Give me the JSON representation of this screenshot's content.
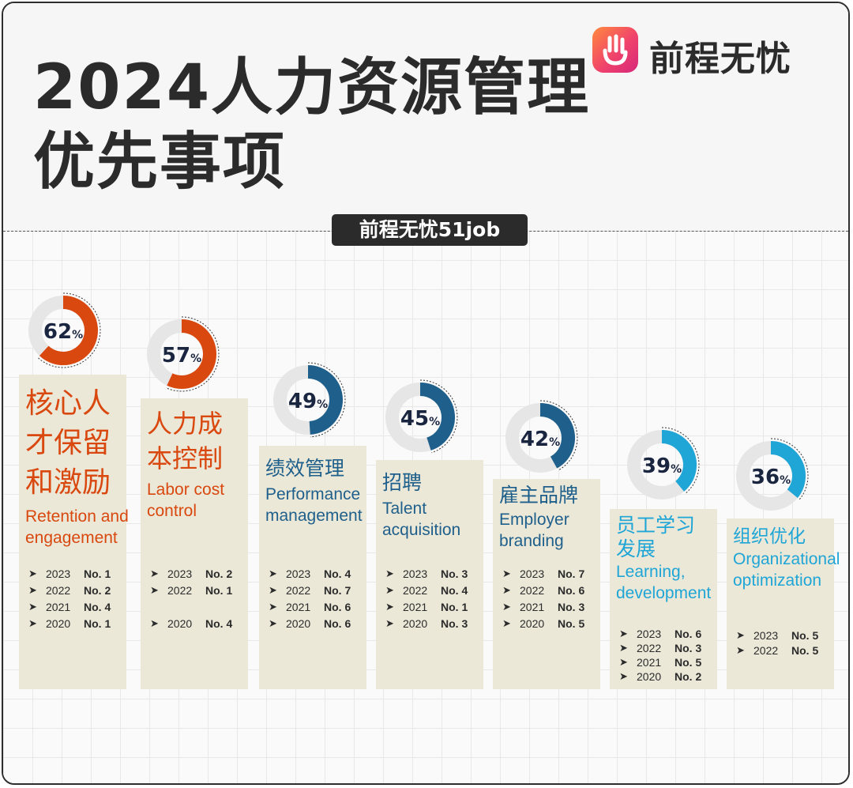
{
  "header": {
    "title_line1": "2024人力资源管理",
    "title_line2": "优先事项",
    "brand_name": "前程无忧",
    "brand_icon": "hand-logo-icon",
    "tag": "前程无忧51job"
  },
  "colors": {
    "orange": "#d9480f",
    "dark_blue": "#1f5f8b",
    "light_blue": "#1fa5d6",
    "ring_gray": "#e6e6e6",
    "card_bg": "#ebe8d8"
  },
  "chart_data": {
    "type": "bar",
    "categories": [
      "核心人才保留和激励",
      "人力成本控制",
      "绩效管理",
      "招聘",
      "雇主品牌",
      "员工学习发展",
      "组织优化"
    ],
    "values": [
      62,
      57,
      49,
      45,
      42,
      39,
      36
    ],
    "unit": "%",
    "items": [
      {
        "cn_lines": [
          "核心人",
          "才保留",
          "和激励"
        ],
        "en_lines": [
          "Retention and",
          "engagement"
        ],
        "value": 62,
        "value_label": "62",
        "unit": "%",
        "color": "#d9480f",
        "ranks": [
          {
            "year": "2023",
            "rank": "No. 1"
          },
          {
            "year": "2022",
            "rank": "No. 2"
          },
          {
            "year": "2021",
            "rank": "No. 4"
          },
          {
            "year": "2020",
            "rank": "No. 1"
          }
        ]
      },
      {
        "cn_lines": [
          "人力成",
          "本控制"
        ],
        "en_lines": [
          "Labor cost",
          "control"
        ],
        "value": 57,
        "value_label": "57",
        "unit": "%",
        "color": "#d9480f",
        "ranks": [
          {
            "year": "2023",
            "rank": "No. 2"
          },
          {
            "year": "2022",
            "rank": "No. 1"
          },
          {
            "year": "",
            "rank": ""
          },
          {
            "year": "2020",
            "rank": "No. 4"
          }
        ]
      },
      {
        "cn_lines": [
          "绩效管理"
        ],
        "en_lines": [
          "Performance",
          "management"
        ],
        "value": 49,
        "value_label": "49",
        "unit": "%",
        "color": "#1f5f8b",
        "ranks": [
          {
            "year": "2023",
            "rank": "No. 4"
          },
          {
            "year": "2022",
            "rank": "No. 7"
          },
          {
            "year": "2021",
            "rank": "No. 6"
          },
          {
            "year": "2020",
            "rank": "No. 6"
          }
        ]
      },
      {
        "cn_lines": [
          "招聘"
        ],
        "en_lines": [
          "Talent",
          "acquisition"
        ],
        "value": 45,
        "value_label": "45",
        "unit": "%",
        "color": "#1f5f8b",
        "ranks": [
          {
            "year": "2023",
            "rank": "No. 3"
          },
          {
            "year": "2022",
            "rank": "No. 4"
          },
          {
            "year": "2021",
            "rank": "No. 1"
          },
          {
            "year": "2020",
            "rank": "No. 3"
          }
        ]
      },
      {
        "cn_lines": [
          "雇主品牌"
        ],
        "en_lines": [
          "Employer",
          "branding"
        ],
        "value": 42,
        "value_label": "42",
        "unit": "%",
        "color": "#1f5f8b",
        "ranks": [
          {
            "year": "2023",
            "rank": "No. 7"
          },
          {
            "year": "2022",
            "rank": "No. 6"
          },
          {
            "year": "2021",
            "rank": "No. 3"
          },
          {
            "year": "2020",
            "rank": "No. 5"
          }
        ]
      },
      {
        "cn_lines": [
          "员工学习",
          "发展"
        ],
        "en_lines": [
          "Learning,",
          "development"
        ],
        "value": 39,
        "value_label": "39",
        "unit": "%",
        "color": "#1fa5d6",
        "ranks": [
          {
            "year": "2023",
            "rank": "No. 6"
          },
          {
            "year": "2022",
            "rank": "No. 3"
          },
          {
            "year": "2021",
            "rank": "No. 5"
          },
          {
            "year": "2020",
            "rank": "No. 2"
          }
        ]
      },
      {
        "cn_lines": [
          "组织优化"
        ],
        "en_lines": [
          "Organizational",
          "optimization"
        ],
        "value": 36,
        "value_label": "36",
        "unit": "%",
        "color": "#1fa5d6",
        "ranks": [
          {
            "year": "2023",
            "rank": "No. 5"
          },
          {
            "year": "2022",
            "rank": "No. 5"
          }
        ]
      }
    ]
  }
}
